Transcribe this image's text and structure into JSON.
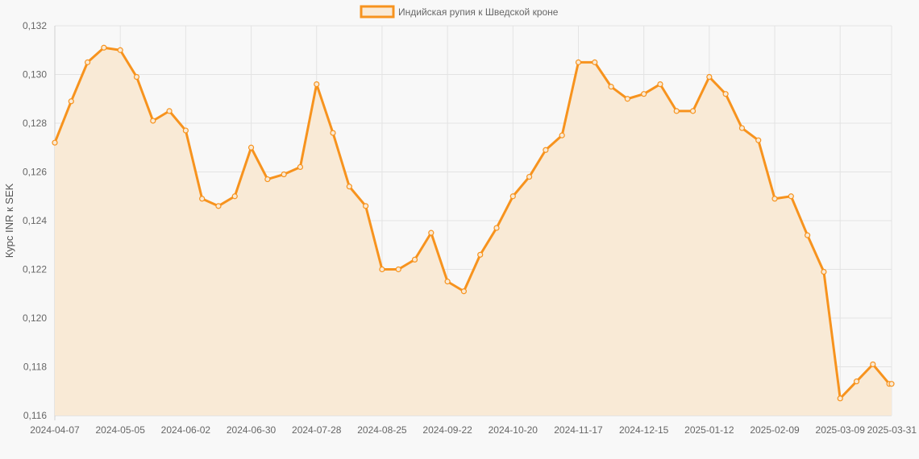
{
  "chart_data": {
    "type": "area",
    "ylabel": "Курс INR к SEK",
    "xlabel": "",
    "ylim": [
      0.116,
      0.132
    ],
    "y_ticks": [
      "0,132",
      "0,130",
      "0,128",
      "0,126",
      "0,124",
      "0,122",
      "0,120",
      "0,118",
      "0,116"
    ],
    "y_tick_values": [
      0.132,
      0.13,
      0.128,
      0.126,
      0.124,
      0.122,
      0.12,
      0.118,
      0.116
    ],
    "x_tick_labels": [
      "2024-04-07",
      "2024-05-05",
      "2024-06-02",
      "2024-06-30",
      "2024-07-28",
      "2024-08-25",
      "2024-09-22",
      "2024-10-20",
      "2024-11-17",
      "2024-12-15",
      "2025-01-12",
      "2025-02-09",
      "2025-03-09",
      "2025-03-31"
    ],
    "grid": true,
    "legend_position": "top-center",
    "series": [
      {
        "name": "Индийская рупия к Шведской кроне",
        "color": "#f7931e",
        "fill_color": "#f9ead6",
        "x": [
          "2024-04-07",
          "2024-04-14",
          "2024-04-21",
          "2024-04-28",
          "2024-05-05",
          "2024-05-12",
          "2024-05-19",
          "2024-05-26",
          "2024-06-02",
          "2024-06-09",
          "2024-06-16",
          "2024-06-23",
          "2024-06-30",
          "2024-07-07",
          "2024-07-14",
          "2024-07-21",
          "2024-07-28",
          "2024-08-04",
          "2024-08-11",
          "2024-08-18",
          "2024-08-25",
          "2024-09-01",
          "2024-09-08",
          "2024-09-15",
          "2024-09-22",
          "2024-09-29",
          "2024-10-06",
          "2024-10-13",
          "2024-10-20",
          "2024-10-27",
          "2024-11-03",
          "2024-11-10",
          "2024-11-17",
          "2024-11-24",
          "2024-12-01",
          "2024-12-08",
          "2024-12-15",
          "2024-12-22",
          "2024-12-29",
          "2025-01-05",
          "2025-01-12",
          "2025-01-19",
          "2025-01-26",
          "2025-02-02",
          "2025-02-09",
          "2025-02-16",
          "2025-02-23",
          "2025-03-02",
          "2025-03-09",
          "2025-03-16",
          "2025-03-23",
          "2025-03-30",
          "2025-03-31"
        ],
        "values": [
          0.1272,
          0.1289,
          0.1305,
          0.1311,
          0.131,
          0.1299,
          0.1281,
          0.1285,
          0.1277,
          0.1249,
          0.1246,
          0.125,
          0.127,
          0.1257,
          0.1259,
          0.1262,
          0.1296,
          0.1276,
          0.1254,
          0.1246,
          0.122,
          0.122,
          0.1224,
          0.1235,
          0.1215,
          0.1211,
          0.1226,
          0.1237,
          0.125,
          0.1258,
          0.1269,
          0.1275,
          0.1305,
          0.1305,
          0.1295,
          0.129,
          0.1292,
          0.1296,
          0.1285,
          0.1285,
          0.1299,
          0.1292,
          0.1278,
          0.1273,
          0.1249,
          0.125,
          0.1234,
          0.1219,
          0.1167,
          0.1174,
          0.1181,
          0.1173,
          0.1173
        ]
      }
    ]
  }
}
